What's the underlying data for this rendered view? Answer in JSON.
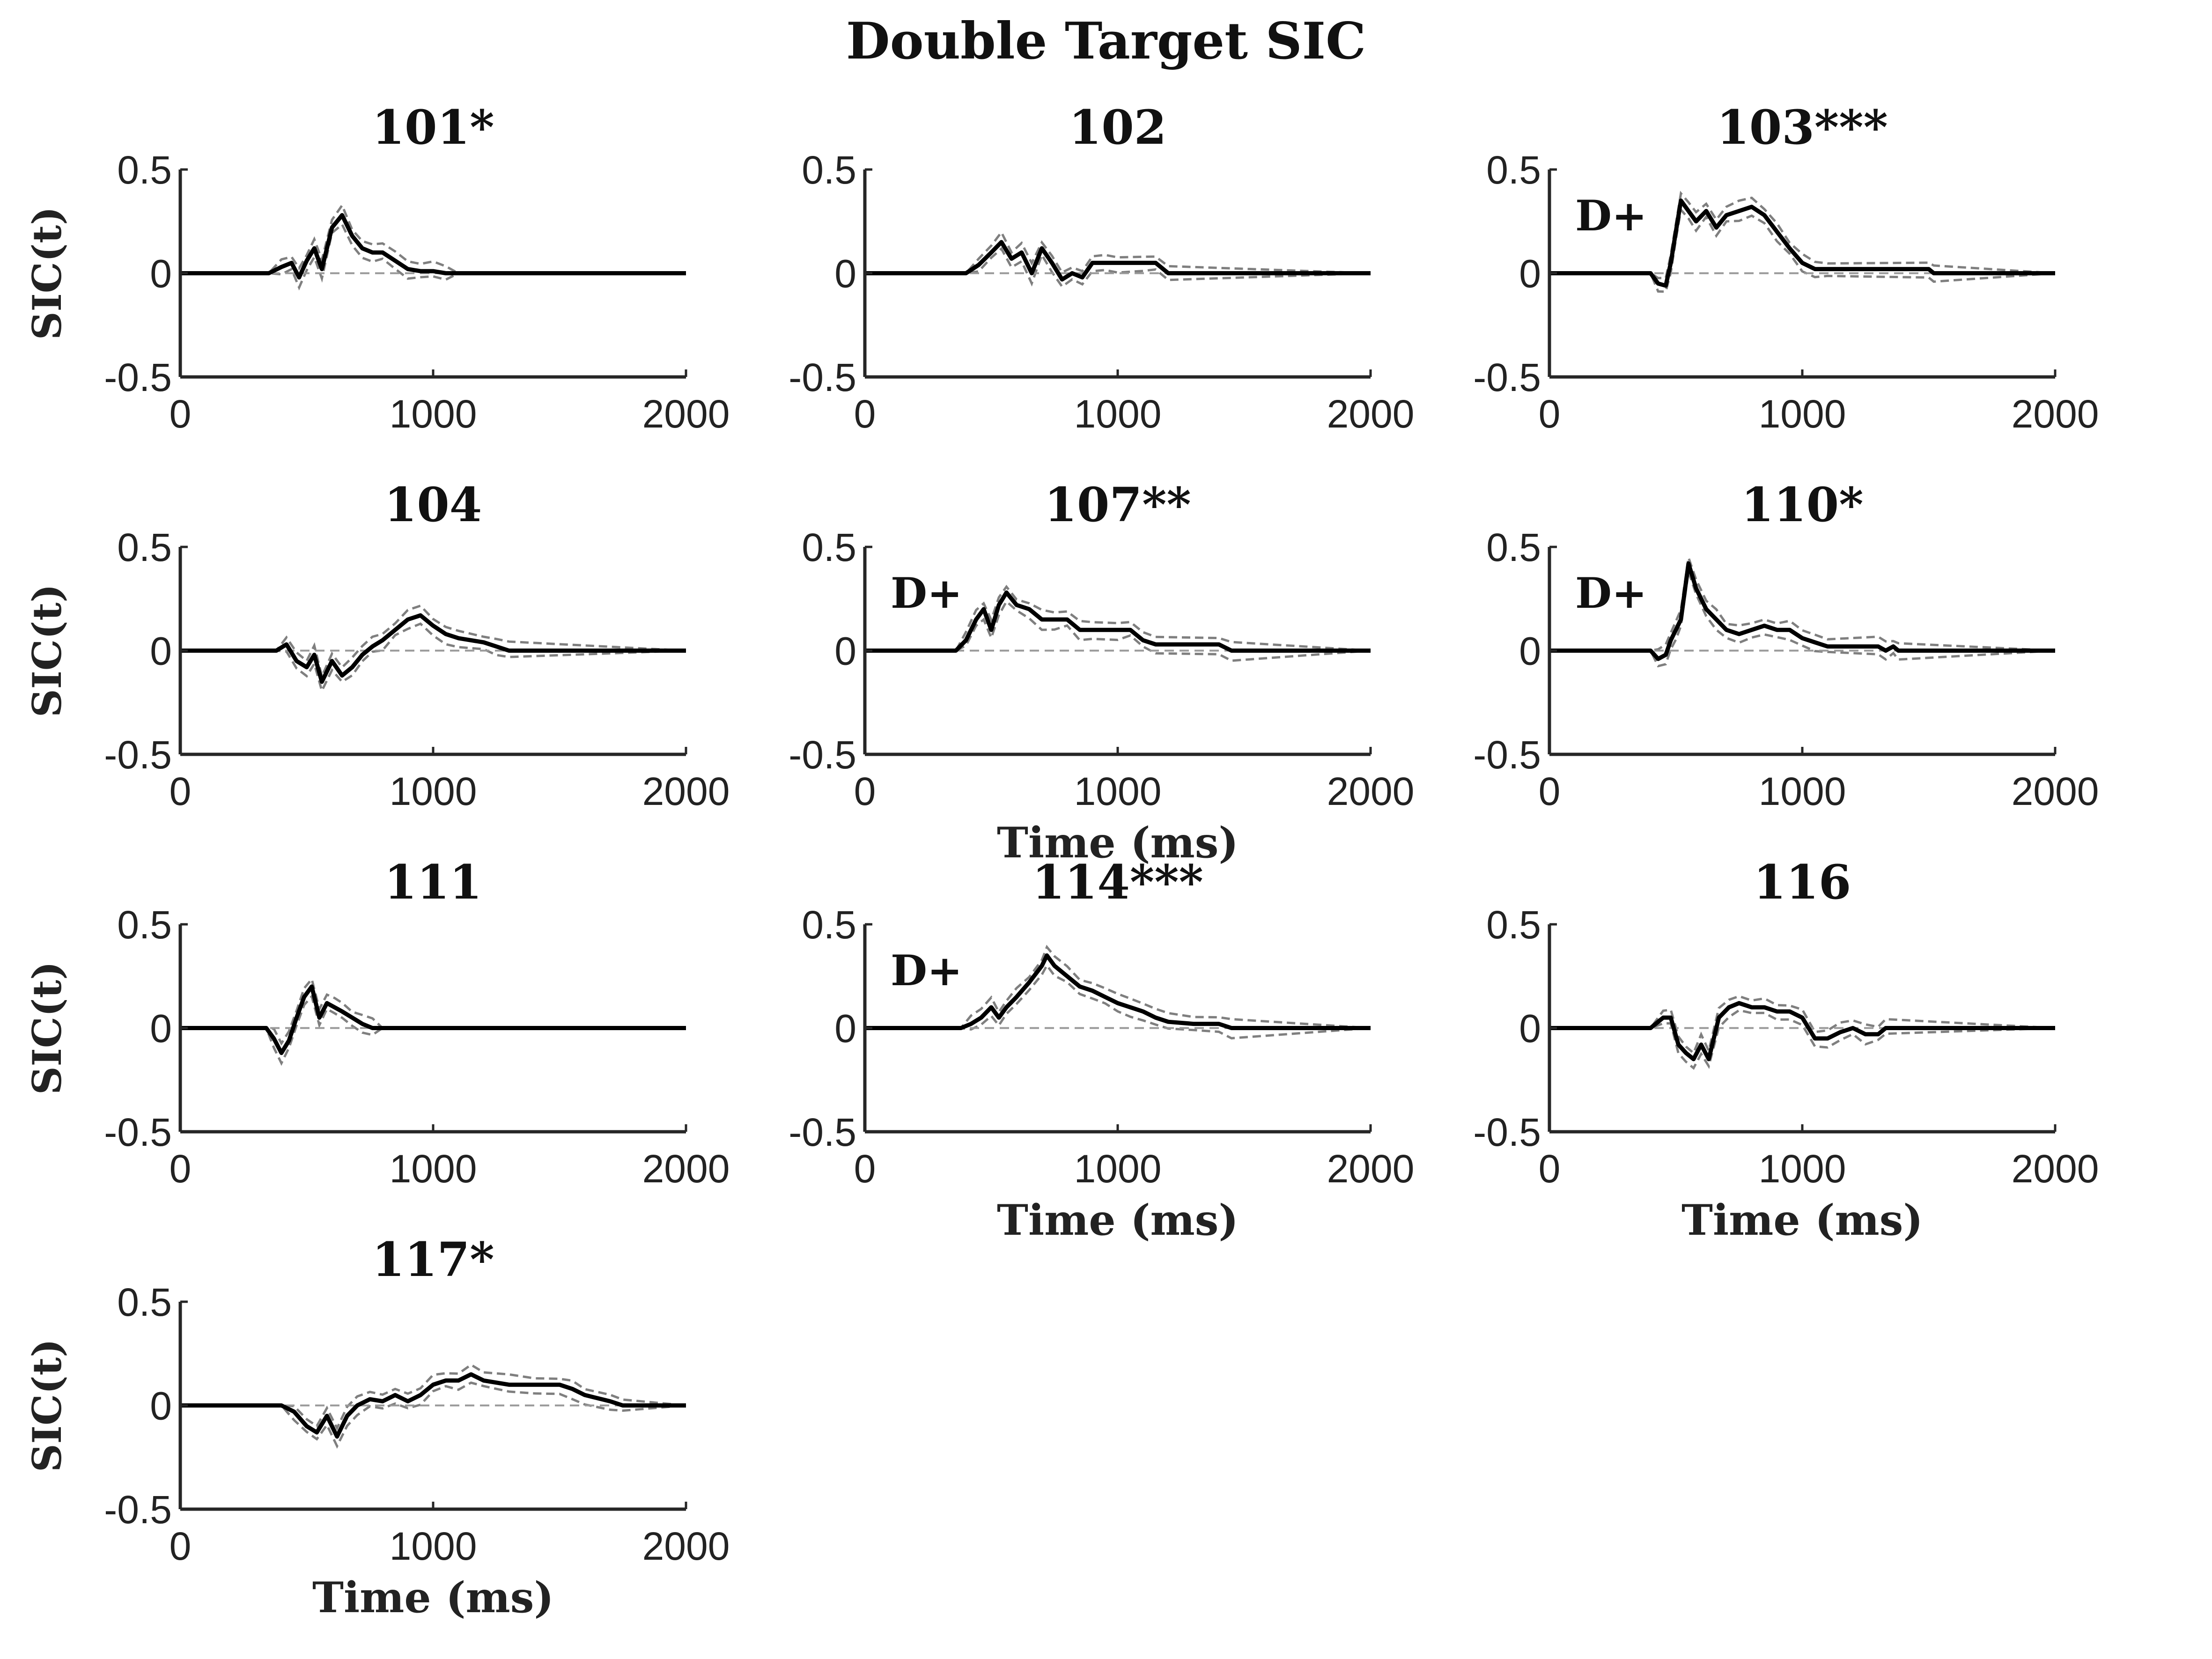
{
  "figure_title": "Double Target SIC",
  "colors": {
    "mean": "#000000",
    "bounds": "#7f7f7f",
    "axis": "#262626",
    "zero": "#999999"
  },
  "chart_data": [
    {
      "type": "line",
      "title": "101*",
      "xlim": [
        0,
        2000
      ],
      "ylim": [
        -0.5,
        0.5
      ],
      "xticks": [
        "0",
        "1000",
        "2000"
      ],
      "yticks": [
        "0.5",
        "0",
        "-0.5"
      ],
      "xlabel": "",
      "ylabel": "SIC(t)",
      "annotation": "",
      "series": [
        {
          "x": [
            0,
            350,
            400,
            440,
            470,
            500,
            530,
            560,
            600,
            640,
            680,
            720,
            760,
            800,
            850,
            900,
            950,
            1000,
            1050,
            1100,
            2000
          ],
          "y": [
            0,
            0,
            0.03,
            0.05,
            -0.02,
            0.06,
            0.12,
            0.02,
            0.22,
            0.28,
            0.18,
            0.12,
            0.1,
            0.1,
            0.06,
            0.02,
            0.01,
            0.01,
            0,
            0,
            0
          ]
        }
      ]
    },
    {
      "type": "line",
      "title": "102",
      "xlim": [
        0,
        2000
      ],
      "ylim": [
        -0.5,
        0.5
      ],
      "xticks": [
        "0",
        "1000",
        "2000"
      ],
      "yticks": [
        "0.5",
        "0",
        "-0.5"
      ],
      "xlabel": "",
      "ylabel": "",
      "annotation": "",
      "series": [
        {
          "x": [
            0,
            400,
            450,
            500,
            540,
            580,
            620,
            660,
            700,
            740,
            780,
            820,
            860,
            900,
            950,
            1000,
            1100,
            1150,
            1200,
            2000
          ],
          "y": [
            0,
            0,
            0.04,
            0.1,
            0.15,
            0.07,
            0.1,
            0,
            0.12,
            0.05,
            -0.03,
            0,
            -0.02,
            0.05,
            0.05,
            0.05,
            0.05,
            0.05,
            0,
            0
          ]
        }
      ]
    },
    {
      "type": "line",
      "title": "103***",
      "xlim": [
        0,
        2000
      ],
      "ylim": [
        -0.5,
        0.5
      ],
      "xticks": [
        "0",
        "1000",
        "2000"
      ],
      "yticks": [
        "0.5",
        "0",
        "-0.5"
      ],
      "xlabel": "",
      "ylabel": "",
      "annotation": "D+",
      "series": [
        {
          "x": [
            0,
            400,
            430,
            460,
            480,
            500,
            520,
            550,
            580,
            620,
            660,
            700,
            750,
            800,
            850,
            900,
            950,
            1000,
            1050,
            1100,
            1500,
            1520,
            2000
          ],
          "y": [
            0,
            0,
            -0.05,
            -0.06,
            0.05,
            0.2,
            0.35,
            0.3,
            0.25,
            0.3,
            0.22,
            0.28,
            0.3,
            0.32,
            0.28,
            0.2,
            0.12,
            0.05,
            0.02,
            0.02,
            0.02,
            0,
            0
          ]
        }
      ]
    },
    {
      "type": "line",
      "title": "104",
      "xlim": [
        0,
        2000
      ],
      "ylim": [
        -0.5,
        0.5
      ],
      "xticks": [
        "0",
        "1000",
        "2000"
      ],
      "yticks": [
        "0.5",
        "0",
        "-0.5"
      ],
      "xlabel": "",
      "ylabel": "SIC(t)",
      "annotation": "",
      "series": [
        {
          "x": [
            0,
            380,
            420,
            460,
            500,
            530,
            560,
            600,
            640,
            680,
            720,
            760,
            800,
            850,
            900,
            950,
            1000,
            1050,
            1100,
            1200,
            1250,
            1300,
            2000
          ],
          "y": [
            0,
            0,
            0.03,
            -0.05,
            -0.08,
            -0.02,
            -0.15,
            -0.05,
            -0.12,
            -0.08,
            -0.02,
            0.02,
            0.05,
            0.1,
            0.15,
            0.17,
            0.12,
            0.08,
            0.06,
            0.04,
            0.02,
            0,
            0
          ]
        }
      ]
    },
    {
      "type": "line",
      "title": "107**",
      "xlim": [
        0,
        2000
      ],
      "ylim": [
        -0.5,
        0.5
      ],
      "xticks": [
        "0",
        "1000",
        "2000"
      ],
      "yticks": [
        "0.5",
        "0",
        "-0.5"
      ],
      "xlabel": "Time (ms)",
      "ylabel": "",
      "annotation": "D+",
      "series": [
        {
          "x": [
            0,
            360,
            400,
            440,
            470,
            500,
            530,
            560,
            600,
            650,
            700,
            750,
            800,
            850,
            900,
            1000,
            1050,
            1100,
            1150,
            1400,
            1450,
            2000
          ],
          "y": [
            0,
            0,
            0.05,
            0.15,
            0.2,
            0.1,
            0.22,
            0.28,
            0.22,
            0.2,
            0.15,
            0.15,
            0.15,
            0.1,
            0.1,
            0.1,
            0.1,
            0.05,
            0.03,
            0.03,
            0,
            0
          ]
        }
      ]
    },
    {
      "type": "line",
      "title": "110*",
      "xlim": [
        0,
        2000
      ],
      "ylim": [
        -0.5,
        0.5
      ],
      "xticks": [
        "0",
        "1000",
        "2000"
      ],
      "yticks": [
        "0.5",
        "0",
        "-0.5"
      ],
      "xlabel": "",
      "ylabel": "",
      "annotation": "D+",
      "series": [
        {
          "x": [
            0,
            400,
            430,
            460,
            480,
            500,
            520,
            550,
            580,
            620,
            660,
            700,
            750,
            800,
            850,
            900,
            950,
            1000,
            1050,
            1100,
            1300,
            1330,
            1360,
            1380,
            2000
          ],
          "y": [
            0,
            0,
            -0.04,
            -0.02,
            0.05,
            0.1,
            0.15,
            0.42,
            0.3,
            0.2,
            0.15,
            0.1,
            0.08,
            0.1,
            0.12,
            0.1,
            0.1,
            0.06,
            0.04,
            0.02,
            0.02,
            0,
            0.02,
            0,
            0
          ]
        }
      ]
    },
    {
      "type": "line",
      "title": "111",
      "xlim": [
        0,
        2000
      ],
      "ylim": [
        -0.5,
        0.5
      ],
      "xticks": [
        "0",
        "1000",
        "2000"
      ],
      "yticks": [
        "0.5",
        "0",
        "-0.5"
      ],
      "xlabel": "",
      "ylabel": "SIC(t)",
      "annotation": "",
      "series": [
        {
          "x": [
            0,
            300,
            340,
            370,
            400,
            430,
            460,
            490,
            520,
            550,
            580,
            610,
            640,
            680,
            720,
            760,
            800,
            2000
          ],
          "y": [
            0,
            0,
            0,
            -0.05,
            -0.12,
            -0.06,
            0.05,
            0.15,
            0.2,
            0.05,
            0.12,
            0.1,
            0.08,
            0.05,
            0.02,
            0,
            0,
            0
          ]
        }
      ]
    },
    {
      "type": "line",
      "title": "114***",
      "xlim": [
        0,
        2000
      ],
      "ylim": [
        -0.5,
        0.5
      ],
      "xticks": [
        "0",
        "1000",
        "2000"
      ],
      "yticks": [
        "0.5",
        "0",
        "-0.5"
      ],
      "xlabel": "Time (ms)",
      "ylabel": "",
      "annotation": "D+",
      "series": [
        {
          "x": [
            0,
            380,
            420,
            460,
            500,
            530,
            560,
            600,
            650,
            700,
            720,
            750,
            800,
            850,
            900,
            950,
            1000,
            1050,
            1100,
            1150,
            1200,
            1300,
            1400,
            1450,
            2000
          ],
          "y": [
            0,
            0,
            0.02,
            0.05,
            0.1,
            0.05,
            0.1,
            0.15,
            0.22,
            0.3,
            0.35,
            0.3,
            0.25,
            0.2,
            0.18,
            0.15,
            0.12,
            0.1,
            0.08,
            0.05,
            0.03,
            0.02,
            0.02,
            0,
            0
          ]
        }
      ]
    },
    {
      "type": "line",
      "title": "116",
      "xlim": [
        0,
        2000
      ],
      "ylim": [
        -0.5,
        0.5
      ],
      "xticks": [
        "0",
        "1000",
        "2000"
      ],
      "yticks": [
        "0.5",
        "0",
        "-0.5"
      ],
      "xlabel": "Time (ms)",
      "ylabel": "",
      "annotation": "",
      "series": [
        {
          "x": [
            0,
            400,
            450,
            480,
            510,
            540,
            570,
            600,
            630,
            670,
            710,
            750,
            800,
            850,
            900,
            950,
            1000,
            1050,
            1100,
            1150,
            1200,
            1250,
            1300,
            1330,
            2000
          ],
          "y": [
            0,
            0,
            0.05,
            0.05,
            -0.08,
            -0.12,
            -0.15,
            -0.08,
            -0.15,
            0.05,
            0.1,
            0.12,
            0.1,
            0.1,
            0.08,
            0.08,
            0.05,
            -0.05,
            -0.05,
            -0.02,
            0,
            -0.03,
            -0.03,
            0,
            0
          ]
        }
      ]
    },
    {
      "type": "line",
      "title": "117*",
      "xlim": [
        0,
        2000
      ],
      "ylim": [
        -0.5,
        0.5
      ],
      "xticks": [
        "0",
        "1000",
        "2000"
      ],
      "yticks": [
        "0.5",
        "0",
        "-0.5"
      ],
      "xlabel": "Time (ms)",
      "ylabel": "SIC(t)",
      "annotation": "",
      "series": [
        {
          "x": [
            0,
            400,
            450,
            500,
            540,
            580,
            620,
            660,
            700,
            750,
            800,
            850,
            900,
            950,
            1000,
            1050,
            1100,
            1150,
            1200,
            1300,
            1400,
            1500,
            1550,
            1600,
            1700,
            1750,
            2000
          ],
          "y": [
            0,
            0,
            -0.03,
            -0.1,
            -0.13,
            -0.05,
            -0.15,
            -0.05,
            0,
            0.03,
            0.02,
            0.05,
            0.02,
            0.05,
            0.1,
            0.12,
            0.12,
            0.15,
            0.12,
            0.1,
            0.1,
            0.1,
            0.08,
            0.05,
            0.02,
            0,
            0
          ]
        }
      ]
    }
  ]
}
